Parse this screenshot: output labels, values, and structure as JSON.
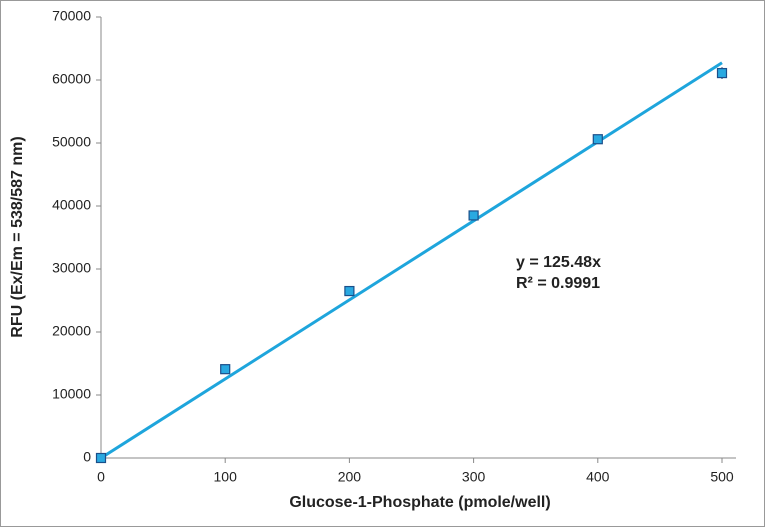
{
  "chart_data": {
    "type": "scatter",
    "xlabel": "Glucose-1-Phosphate (pmole/well)",
    "ylabel": "RFU (Ex/Em = 538/587 nm)",
    "x": [
      0,
      100,
      200,
      300,
      400,
      500
    ],
    "series": [
      {
        "values": [
          0,
          14100,
          26500,
          38500,
          50600,
          61100
        ],
        "errors": [
          300,
          700,
          400,
          500,
          400,
          900
        ],
        "color": "#29a9e1"
      }
    ],
    "trendline": {
      "slope": 125.48,
      "color": "#1ea5dc",
      "equation": "y = 125.48x",
      "r2": "R² = 0.9991"
    },
    "xlim": [
      0,
      500
    ],
    "ylim": [
      0,
      70000
    ],
    "xticks": [
      0,
      100,
      200,
      300,
      400,
      500
    ],
    "yticks": [
      0,
      10000,
      20000,
      30000,
      40000,
      50000,
      60000,
      70000
    ]
  }
}
